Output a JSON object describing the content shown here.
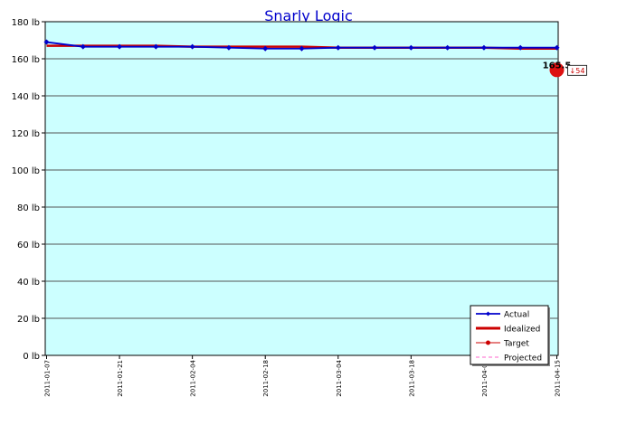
{
  "chart_data": {
    "type": "line",
    "title": "Snarly Logic",
    "ylim": [
      0,
      180
    ],
    "y_ticks": [
      0,
      20,
      40,
      60,
      80,
      100,
      120,
      140,
      160,
      180
    ],
    "y_tick_labels": [
      "0 lb",
      "20 lb",
      "40 lb",
      "60 lb",
      "80 lb",
      "100 lb",
      "120 lb",
      "140 lb",
      "160 lb",
      "180 lb"
    ],
    "x_range": [
      "2011-01-07",
      "2011-04-15"
    ],
    "x_tick_labels": [
      "2011-01-07",
      "2011-01-21",
      "2011-02-04",
      "2011-02-18",
      "2011-03-04",
      "2011-03-18",
      "2011-04-01",
      "2011-04-15"
    ],
    "grid": "horizontal",
    "legend_position": "bottom-right",
    "colors": {
      "plot_bg": "#ccffff",
      "actual": "#0000cc",
      "idealized": "#cc0000",
      "target": "#cc0000",
      "projected": "#ff66cc",
      "title": "#0000cc"
    },
    "series": [
      {
        "name": "Actual",
        "x": [
          "2011-01-07",
          "2011-01-14",
          "2011-01-21",
          "2011-01-28",
          "2011-02-04",
          "2011-02-11",
          "2011-02-18",
          "2011-02-25",
          "2011-03-04",
          "2011-03-11",
          "2011-03-18",
          "2011-03-25",
          "2011-04-01",
          "2011-04-08",
          "2011-04-15"
        ],
        "values": [
          169.0,
          166.5,
          166.5,
          166.5,
          166.5,
          166.0,
          165.5,
          165.5,
          166.0,
          166.0,
          166.0,
          166.0,
          166.0,
          166.0,
          166.0
        ]
      },
      {
        "name": "Idealized",
        "x": [
          "2011-01-07",
          "2011-01-14",
          "2011-01-21",
          "2011-01-28",
          "2011-02-04",
          "2011-02-11",
          "2011-02-18",
          "2011-02-25",
          "2011-03-04",
          "2011-03-11",
          "2011-03-18",
          "2011-03-25",
          "2011-04-01",
          "2011-04-08",
          "2011-04-15"
        ],
        "values": [
          167.0,
          167.0,
          167.0,
          167.0,
          166.5,
          166.5,
          166.5,
          166.5,
          166.0,
          166.0,
          166.0,
          166.0,
          166.0,
          165.5,
          165.5
        ]
      },
      {
        "name": "Target",
        "x": [
          "2011-04-15"
        ],
        "values": [
          154
        ]
      },
      {
        "name": "Projected",
        "x": [],
        "values": []
      }
    ],
    "annotations": {
      "current_value": "165.5",
      "delta_label": "↓54"
    }
  }
}
